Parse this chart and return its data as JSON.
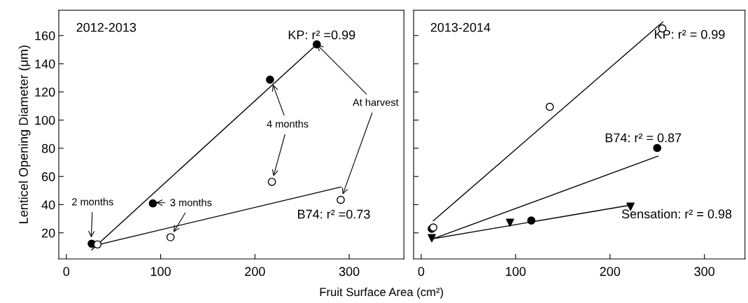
{
  "chart_data": [
    {
      "type": "scatter",
      "title": "2012-2013",
      "xlabel": "Fruit Surface Area (cm²)",
      "ylabel": "Lenticel Opening Diameter (μm)",
      "xlim": [
        -8,
        358
      ],
      "ylim": [
        1.5,
        178
      ],
      "xticks": [
        0,
        100,
        200,
        300
      ],
      "yticks": [
        20,
        40,
        60,
        80,
        100,
        120,
        140,
        160
      ],
      "grid": false,
      "legend": false,
      "series": [
        {
          "name": "KP: r² =0.99",
          "marker": "circle",
          "color": "#000000",
          "x": [
            26.9,
            91.8,
            216,
            265.6
          ],
          "values": [
            12.3,
            40.9,
            128.7,
            153.7
          ]
        },
        {
          "type": "line",
          "color": "#000000",
          "line_style": "solid",
          "marker": "none",
          "x": [
            26.9,
            265.6
          ],
          "values": [
            8,
            153.7
          ]
        },
        {
          "name": "B74: r² =0.73",
          "marker": "circle",
          "color": "#ffffff",
          "x": [
            33,
            110.5,
            218,
            291
          ],
          "values": [
            11.8,
            16.9,
            56.2,
            43.4
          ]
        },
        {
          "type": "line",
          "color": "#000000",
          "line_style": "solid",
          "marker": "none",
          "x": [
            33,
            291
          ],
          "values": [
            11.5,
            52.5
          ]
        }
      ],
      "annotations": [
        {
          "text": "2 months",
          "x": 26.4,
          "y": 16.6
        },
        {
          "text": "3 months",
          "x": 95,
          "y": 41.5
        },
        {
          "text": "4 months",
          "x": 219,
          "y": 125.3
        },
        {
          "text": "At harvest",
          "x": 265.6,
          "y": 153.7
        }
      ]
    },
    {
      "type": "scatter",
      "title": "2013-2014",
      "xlim": [
        -8,
        343
      ],
      "ylim": [
        1.5,
        178
      ],
      "xticks": [
        0,
        100,
        200,
        300
      ],
      "yticks": [
        20,
        40,
        60,
        80,
        100,
        120,
        140,
        160
      ],
      "tick_labels": "x",
      "grid": false,
      "legend": false,
      "series": [
        {
          "name": "KP: r² = 0.99",
          "marker": "circle",
          "color": "#ffffff",
          "x": [
            12.8,
            136.2,
            255.4
          ],
          "values": [
            23.8,
            109.4,
            165
          ]
        },
        {
          "type": "line",
          "color": "#000000",
          "line_style": "solid",
          "marker": "none",
          "x": [
            12.8,
            255.9
          ],
          "values": [
            28.5,
            169.6
          ]
        },
        {
          "name": "B74: r² = 0.87",
          "marker": "circle",
          "color": "#000000",
          "x": [
            11.2,
            116.6,
            250
          ],
          "values": [
            22.9,
            28.7,
            80.2
          ]
        },
        {
          "type": "line",
          "color": "#000000",
          "line_style": "solid",
          "marker": "none",
          "x": [
            12.2,
            250.8
          ],
          "values": [
            15.7,
            74.4
          ]
        },
        {
          "name": "Sensation: r² = 0.98",
          "marker": "triangle",
          "color": "#000000",
          "x": [
            11.2,
            94.1,
            221.7
          ],
          "values": [
            16.2,
            27.2,
            38.6
          ]
        },
        {
          "type": "line",
          "color": "#000000",
          "line_style": "solid",
          "marker": "none",
          "x": [
            11.2,
            221.7
          ],
          "values": [
            15.7,
            39.7
          ]
        }
      ]
    }
  ]
}
